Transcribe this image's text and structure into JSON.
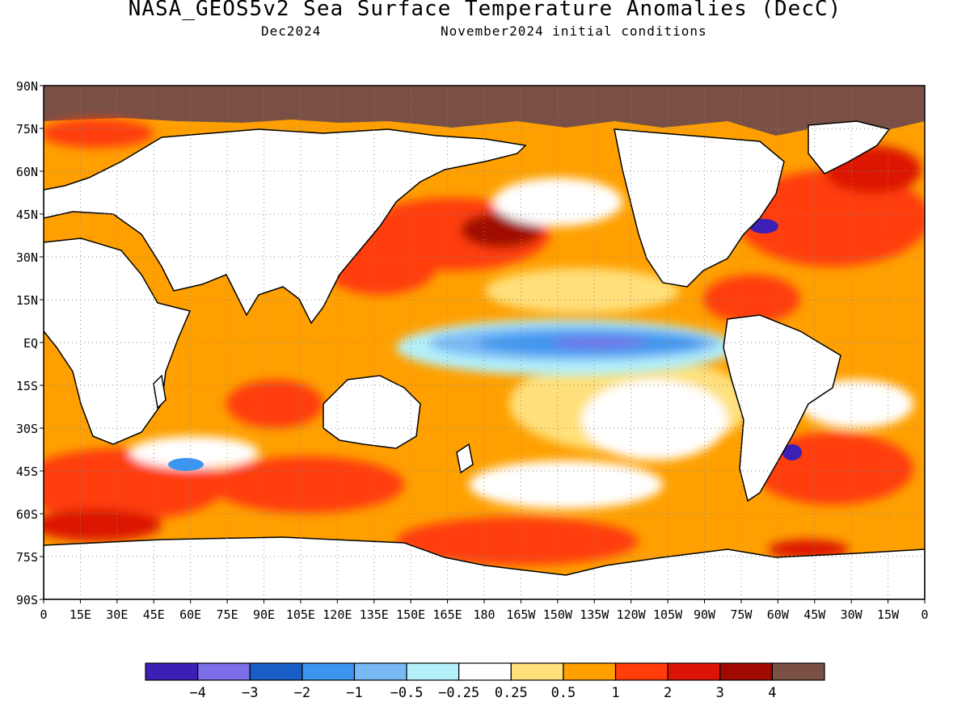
{
  "title": "NASA_GEOS5v2 Sea Surface Temperature Anomalies (DecC)",
  "subtitle_left": "Dec2024",
  "subtitle_right": "November2024 initial conditions",
  "map": {
    "lon_range": [
      0,
      360
    ],
    "lat_range": [
      -90,
      90
    ],
    "grid": "dotted",
    "land_color": "#ffffff",
    "coast_color": "#000000",
    "lat_ticks": [
      {
        "value": 90,
        "label": "90N"
      },
      {
        "value": 75,
        "label": "75N"
      },
      {
        "value": 60,
        "label": "60N"
      },
      {
        "value": 45,
        "label": "45N"
      },
      {
        "value": 30,
        "label": "30N"
      },
      {
        "value": 15,
        "label": "15N"
      },
      {
        "value": 0,
        "label": "EQ"
      },
      {
        "value": -15,
        "label": "15S"
      },
      {
        "value": -30,
        "label": "30S"
      },
      {
        "value": -45,
        "label": "45S"
      },
      {
        "value": -60,
        "label": "60S"
      },
      {
        "value": -75,
        "label": "75S"
      },
      {
        "value": -90,
        "label": "90S"
      }
    ],
    "lon_ticks": [
      {
        "value": 0,
        "label": "0"
      },
      {
        "value": 15,
        "label": "15E"
      },
      {
        "value": 30,
        "label": "30E"
      },
      {
        "value": 45,
        "label": "45E"
      },
      {
        "value": 60,
        "label": "60E"
      },
      {
        "value": 75,
        "label": "75E"
      },
      {
        "value": 90,
        "label": "90E"
      },
      {
        "value": 105,
        "label": "105E"
      },
      {
        "value": 120,
        "label": "120E"
      },
      {
        "value": 135,
        "label": "135E"
      },
      {
        "value": 150,
        "label": "150E"
      },
      {
        "value": 165,
        "label": "165E"
      },
      {
        "value": 180,
        "label": "180"
      },
      {
        "value": 195,
        "label": "165W"
      },
      {
        "value": 210,
        "label": "150W"
      },
      {
        "value": 225,
        "label": "135W"
      },
      {
        "value": 240,
        "label": "120W"
      },
      {
        "value": 255,
        "label": "105W"
      },
      {
        "value": 270,
        "label": "90W"
      },
      {
        "value": 285,
        "label": "75W"
      },
      {
        "value": 300,
        "label": "60W"
      },
      {
        "value": 315,
        "label": "45W"
      },
      {
        "value": 330,
        "label": "30W"
      },
      {
        "value": 345,
        "label": "15W"
      },
      {
        "value": 360,
        "label": "0"
      }
    ]
  },
  "colorbar": {
    "colors": [
      "#3c1fb4",
      "#7b6ee8",
      "#1a5fc8",
      "#3c96f0",
      "#78b8f5",
      "#b4f0fa",
      "#ffffff",
      "#ffe07a",
      "#ffa000",
      "#ff3c0a",
      "#dc1405",
      "#a00a00",
      "#7a5045"
    ],
    "labels": [
      "−4",
      "−3",
      "−2",
      "−1",
      "−0.5",
      "−0.25",
      "0.25",
      "0.5",
      "1",
      "2",
      "3",
      "4"
    ]
  }
}
